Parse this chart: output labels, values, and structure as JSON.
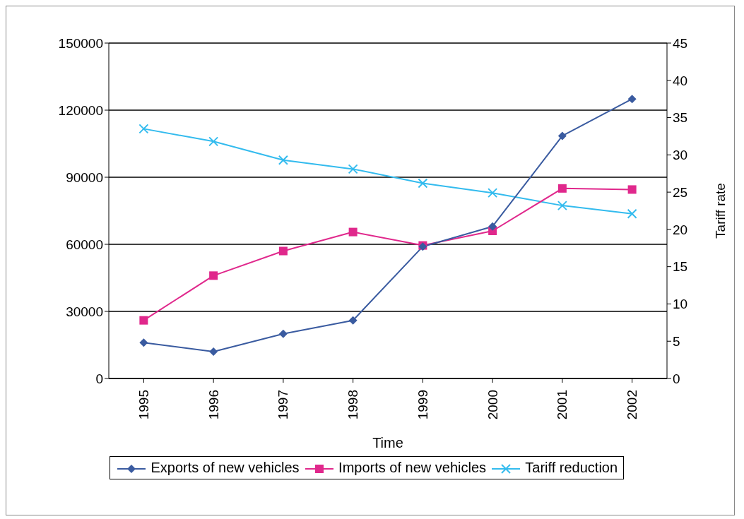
{
  "chart_data": {
    "type": "line",
    "xlabel": "Time",
    "y2label": "Tariff rate",
    "categories": [
      "1995",
      "1996",
      "1997",
      "1998",
      "1999",
      "2000",
      "2001",
      "2002"
    ],
    "series": [
      {
        "name": "Exports of new vehicles",
        "color": "#3a5ba0",
        "marker": "diamond",
        "values": [
          16000,
          12000,
          20000,
          26000,
          59000,
          68000,
          108500,
          125000
        ]
      },
      {
        "name": "Imports of new vehicles",
        "color": "#e0288c",
        "marker": "square",
        "values": [
          26000,
          46000,
          57000,
          65500,
          59500,
          66000,
          85000,
          84500
        ]
      },
      {
        "name": "Tariff reduction",
        "color": "#33bbee",
        "marker": "cross",
        "axis": "y2",
        "values": [
          33.5,
          31.8,
          29.3,
          28.1,
          26.2,
          24.9,
          23.2,
          22.1
        ]
      }
    ],
    "ylim": [
      0,
      150000
    ],
    "yticks": [
      0,
      30000,
      60000,
      90000,
      120000,
      150000
    ],
    "y2lim": [
      0,
      45
    ],
    "y2ticks": [
      0,
      5,
      10,
      15,
      20,
      25,
      30,
      35,
      40,
      45
    ],
    "grid": "y",
    "legend": "bottom",
    "line_style": "solid"
  }
}
